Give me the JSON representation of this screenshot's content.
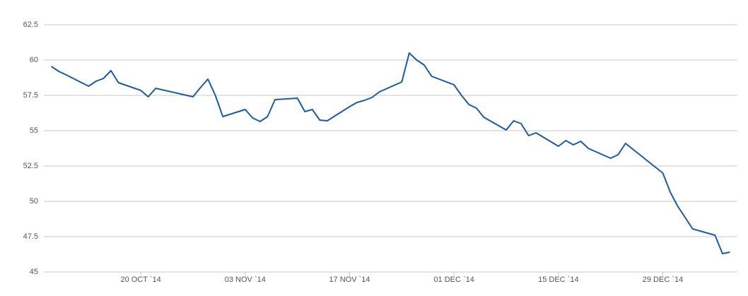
{
  "chart_data": {
    "type": "line",
    "x": [
      "2014-10-08",
      "2014-10-09",
      "2014-10-10",
      "2014-10-13",
      "2014-10-14",
      "2014-10-15",
      "2014-10-16",
      "2014-10-17",
      "2014-10-20",
      "2014-10-21",
      "2014-10-22",
      "2014-10-27",
      "2014-10-28",
      "2014-10-29",
      "2014-10-30",
      "2014-10-31",
      "2014-11-03",
      "2014-11-04",
      "2014-11-05",
      "2014-11-06",
      "2014-11-07",
      "2014-11-10",
      "2014-11-11",
      "2014-11-12",
      "2014-11-13",
      "2014-11-14",
      "2014-11-17",
      "2014-11-18",
      "2014-11-19",
      "2014-11-20",
      "2014-11-21",
      "2014-11-24",
      "2014-11-25",
      "2014-11-26",
      "2014-11-27",
      "2014-11-28",
      "2014-12-01",
      "2014-12-02",
      "2014-12-03",
      "2014-12-04",
      "2014-12-05",
      "2014-12-08",
      "2014-12-09",
      "2014-12-10",
      "2014-12-11",
      "2014-12-12",
      "2014-12-15",
      "2014-12-16",
      "2014-12-17",
      "2014-12-18",
      "2014-12-19",
      "2014-12-22",
      "2014-12-23",
      "2014-12-24",
      "2014-12-29",
      "2014-12-30",
      "2014-12-31",
      "2015-01-02",
      "2015-01-05",
      "2015-01-06",
      "2015-01-07"
    ],
    "series": [
      {
        "color": "#1c5b9e",
        "values": [
          59.55,
          59.2,
          58.95,
          58.15,
          58.5,
          58.7,
          59.25,
          58.4,
          57.85,
          57.4,
          58.0,
          57.4,
          58.05,
          58.65,
          57.5,
          56.0,
          56.5,
          55.9,
          55.65,
          56.0,
          57.2,
          57.3,
          56.35,
          56.5,
          55.75,
          55.7,
          56.7,
          57.0,
          57.15,
          57.35,
          57.75,
          58.45,
          60.5,
          60.0,
          59.65,
          58.85,
          58.25,
          57.5,
          56.85,
          56.6,
          55.95,
          55.05,
          55.7,
          55.5,
          54.65,
          54.85,
          53.9,
          54.3,
          54.0,
          54.25,
          53.75,
          53.05,
          53.3,
          54.1,
          52.0,
          50.65,
          49.65,
          48.05,
          47.6,
          46.3,
          46.4
        ]
      }
    ],
    "xlim": [
      "2014-10-07",
      "2015-01-08"
    ],
    "xticks": [
      {
        "value": "2014-10-20",
        "label": "20 OCT `14"
      },
      {
        "value": "2014-11-03",
        "label": "03 NOV `14"
      },
      {
        "value": "2014-11-17",
        "label": "17 NOV `14"
      },
      {
        "value": "2014-12-01",
        "label": "01 DEC `14"
      },
      {
        "value": "2014-12-15",
        "label": "15 DEC `14"
      },
      {
        "value": "2014-12-29",
        "label": "29 DEC `14"
      }
    ],
    "ylim": [
      45,
      62.5
    ],
    "yticks": [
      45,
      47.5,
      50,
      52.5,
      55,
      57.5,
      60,
      62.5
    ],
    "grid": true
  }
}
